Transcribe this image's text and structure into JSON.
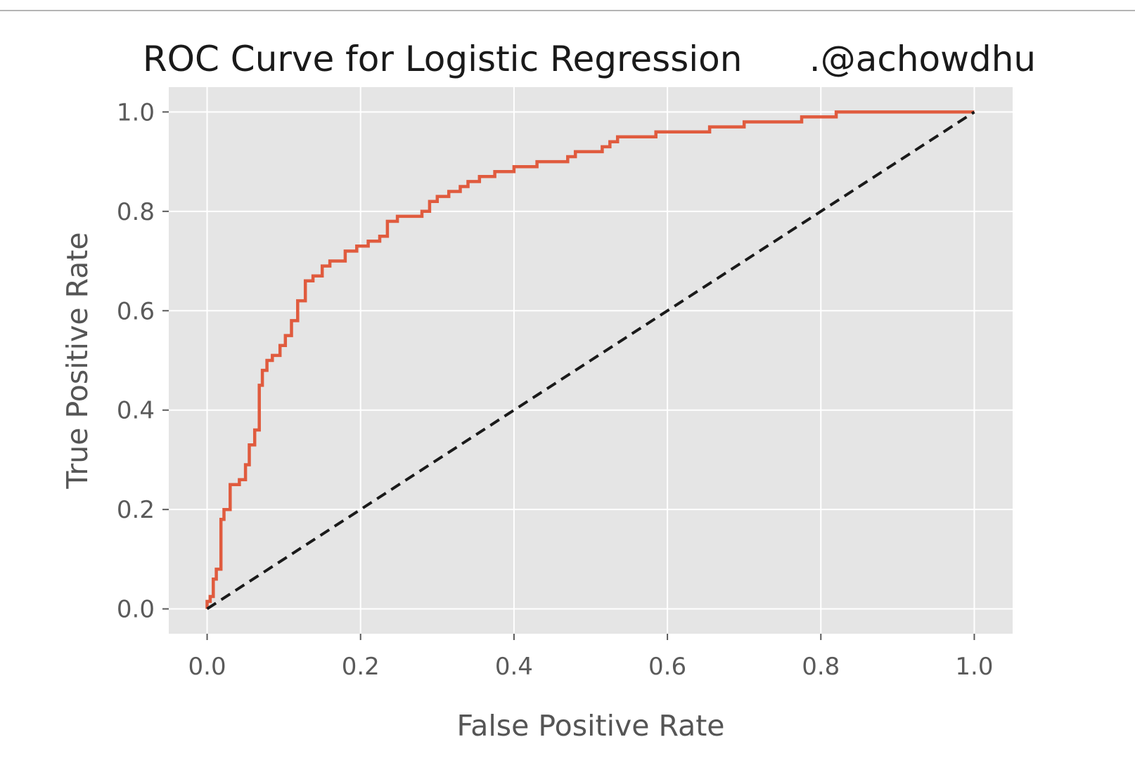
{
  "chart_data": {
    "type": "line",
    "title": "ROC Curve for Logistic Regression      .@achowdhu",
    "xlabel": "False Positive Rate",
    "ylabel": "True Positive Rate",
    "xlim": [
      -0.05,
      1.05
    ],
    "ylim": [
      -0.05,
      1.05
    ],
    "xticks": [
      "0.0",
      "0.2",
      "0.4",
      "0.6",
      "0.8",
      "1.0"
    ],
    "yticks": [
      "0.0",
      "0.2",
      "0.4",
      "0.6",
      "0.8",
      "1.0"
    ],
    "grid": true,
    "legend": "none",
    "colors": {
      "roc": "#e05b3e",
      "baseline": "#1a1a1a",
      "plot_background": "#e5e5e5",
      "grid": "#ffffff"
    },
    "series": [
      {
        "style": "solid",
        "x": [
          0.0,
          0.0,
          0.004,
          0.004,
          0.008,
          0.008,
          0.012,
          0.012,
          0.018,
          0.018,
          0.022,
          0.022,
          0.03,
          0.03,
          0.042,
          0.042,
          0.05,
          0.05,
          0.055,
          0.055,
          0.062,
          0.062,
          0.068,
          0.068,
          0.072,
          0.072,
          0.078,
          0.078,
          0.085,
          0.085,
          0.095,
          0.095,
          0.102,
          0.102,
          0.11,
          0.11,
          0.118,
          0.118,
          0.128,
          0.128,
          0.138,
          0.138,
          0.15,
          0.15,
          0.16,
          0.16,
          0.18,
          0.18,
          0.195,
          0.195,
          0.21,
          0.21,
          0.225,
          0.225,
          0.235,
          0.235,
          0.248,
          0.248,
          0.28,
          0.28,
          0.29,
          0.29,
          0.3,
          0.3,
          0.315,
          0.315,
          0.33,
          0.33,
          0.34,
          0.34,
          0.355,
          0.355,
          0.375,
          0.375,
          0.4,
          0.4,
          0.43,
          0.43,
          0.47,
          0.47,
          0.48,
          0.48,
          0.515,
          0.515,
          0.525,
          0.525,
          0.535,
          0.535,
          0.585,
          0.585,
          0.655,
          0.655,
          0.7,
          0.7,
          0.775,
          0.775,
          0.82,
          0.82,
          1.0
        ],
        "y": [
          0.0,
          0.015,
          0.015,
          0.025,
          0.025,
          0.06,
          0.06,
          0.08,
          0.08,
          0.18,
          0.18,
          0.2,
          0.2,
          0.25,
          0.25,
          0.26,
          0.26,
          0.29,
          0.29,
          0.33,
          0.33,
          0.36,
          0.36,
          0.45,
          0.45,
          0.48,
          0.48,
          0.5,
          0.5,
          0.51,
          0.51,
          0.53,
          0.53,
          0.55,
          0.55,
          0.58,
          0.58,
          0.62,
          0.62,
          0.66,
          0.66,
          0.67,
          0.67,
          0.69,
          0.69,
          0.7,
          0.7,
          0.72,
          0.72,
          0.73,
          0.73,
          0.74,
          0.74,
          0.75,
          0.75,
          0.78,
          0.78,
          0.79,
          0.79,
          0.8,
          0.8,
          0.82,
          0.82,
          0.83,
          0.83,
          0.84,
          0.84,
          0.85,
          0.85,
          0.86,
          0.86,
          0.87,
          0.87,
          0.88,
          0.88,
          0.89,
          0.89,
          0.9,
          0.9,
          0.91,
          0.91,
          0.92,
          0.92,
          0.93,
          0.93,
          0.94,
          0.94,
          0.95,
          0.95,
          0.96,
          0.96,
          0.97,
          0.97,
          0.98,
          0.98,
          0.99,
          0.99,
          1.0,
          1.0
        ]
      },
      {
        "style": "dashed",
        "x": [
          0.0,
          1.0
        ],
        "y": [
          0.0,
          1.0
        ]
      }
    ]
  }
}
